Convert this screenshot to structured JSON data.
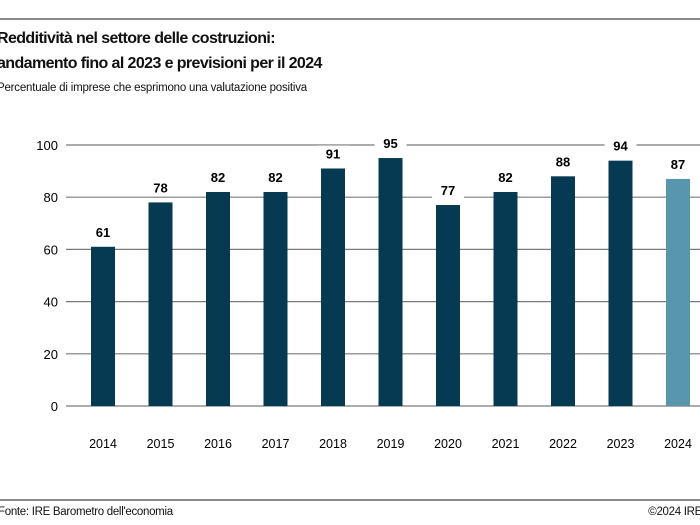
{
  "header": {
    "title_line1": "Redditività nel settore delle costruzioni:",
    "title_line2": "andamento fino al 2023 e previsioni per il 2024",
    "subtitle": "Percentuale di imprese che esprimono una valutazione positiva"
  },
  "footer": {
    "source": "Fonte: IRE   Barometro dell'economia",
    "copyright": "©2024 IRE"
  },
  "colors": {
    "actual": "#063a52",
    "forecast": "#5796ad",
    "grid": "#7a7a7a"
  },
  "chart_data": {
    "type": "bar",
    "title": "Redditività nel settore delle costruzioni: andamento fino al 2023 e previsioni per il 2024",
    "subtitle": "Percentuale di imprese che esprimono una valutazione positiva",
    "categories": [
      "2014",
      "2015",
      "2016",
      "2017",
      "2018",
      "2019",
      "2020",
      "2021",
      "2022",
      "2023",
      "2024"
    ],
    "values": [
      61,
      78,
      82,
      82,
      91,
      95,
      77,
      82,
      88,
      94,
      87
    ],
    "forecast": [
      false,
      false,
      false,
      false,
      false,
      false,
      false,
      false,
      false,
      false,
      true
    ],
    "ylim": [
      0,
      100
    ],
    "yticks": [
      0,
      20,
      40,
      60,
      80,
      100
    ],
    "grid": true,
    "data_labels": true
  }
}
